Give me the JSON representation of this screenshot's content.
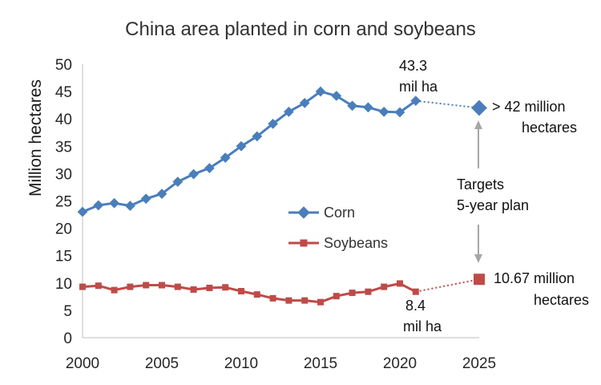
{
  "chart_data": {
    "type": "line",
    "title": "China area planted in corn and soybeans",
    "xlabel": "",
    "ylabel": "Million hectares",
    "xlim": [
      2000,
      2025
    ],
    "ylim": [
      0,
      50
    ],
    "xticks": [
      2000,
      2005,
      2010,
      2015,
      2020,
      2025
    ],
    "yticks": [
      0,
      5,
      10,
      15,
      20,
      25,
      30,
      35,
      40,
      45,
      50
    ],
    "grid": false,
    "legend_position": "center",
    "colors": {
      "corn": "#4a7ebb",
      "soybeans": "#be4b48"
    },
    "series": [
      {
        "name": "Corn",
        "x": [
          2000,
          2001,
          2002,
          2003,
          2004,
          2005,
          2006,
          2007,
          2008,
          2009,
          2010,
          2011,
          2012,
          2013,
          2014,
          2015,
          2016,
          2017,
          2018,
          2019,
          2020,
          2021
        ],
        "values": [
          23.0,
          24.2,
          24.6,
          24.1,
          25.4,
          26.3,
          28.5,
          29.9,
          31.0,
          32.9,
          35.0,
          36.8,
          39.1,
          41.3,
          42.9,
          45.0,
          44.2,
          42.4,
          42.1,
          41.3,
          41.2,
          43.3
        ]
      },
      {
        "name": "Soybeans",
        "x": [
          2000,
          2001,
          2002,
          2003,
          2004,
          2005,
          2006,
          2007,
          2008,
          2009,
          2010,
          2011,
          2012,
          2013,
          2014,
          2015,
          2016,
          2017,
          2018,
          2019,
          2020,
          2021
        ],
        "values": [
          9.3,
          9.5,
          8.7,
          9.3,
          9.6,
          9.6,
          9.3,
          8.8,
          9.1,
          9.2,
          8.5,
          7.9,
          7.2,
          6.8,
          6.8,
          6.5,
          7.6,
          8.2,
          8.4,
          9.3,
          9.9,
          8.4
        ]
      }
    ],
    "targets": [
      {
        "series": "Corn",
        "x": 2025,
        "value": 42,
        "label_lines": [
          "> 42 million",
          "hectares"
        ]
      },
      {
        "series": "Soybeans",
        "x": 2025,
        "value": 10.67,
        "label_lines": [
          "10.67 million",
          "hectares"
        ]
      }
    ],
    "annotations": {
      "corn_2021": [
        "43.3",
        "mil ha"
      ],
      "soy_2021": [
        "8.4",
        "mil ha"
      ],
      "plan": [
        "Targets",
        "5-year plan"
      ]
    }
  }
}
